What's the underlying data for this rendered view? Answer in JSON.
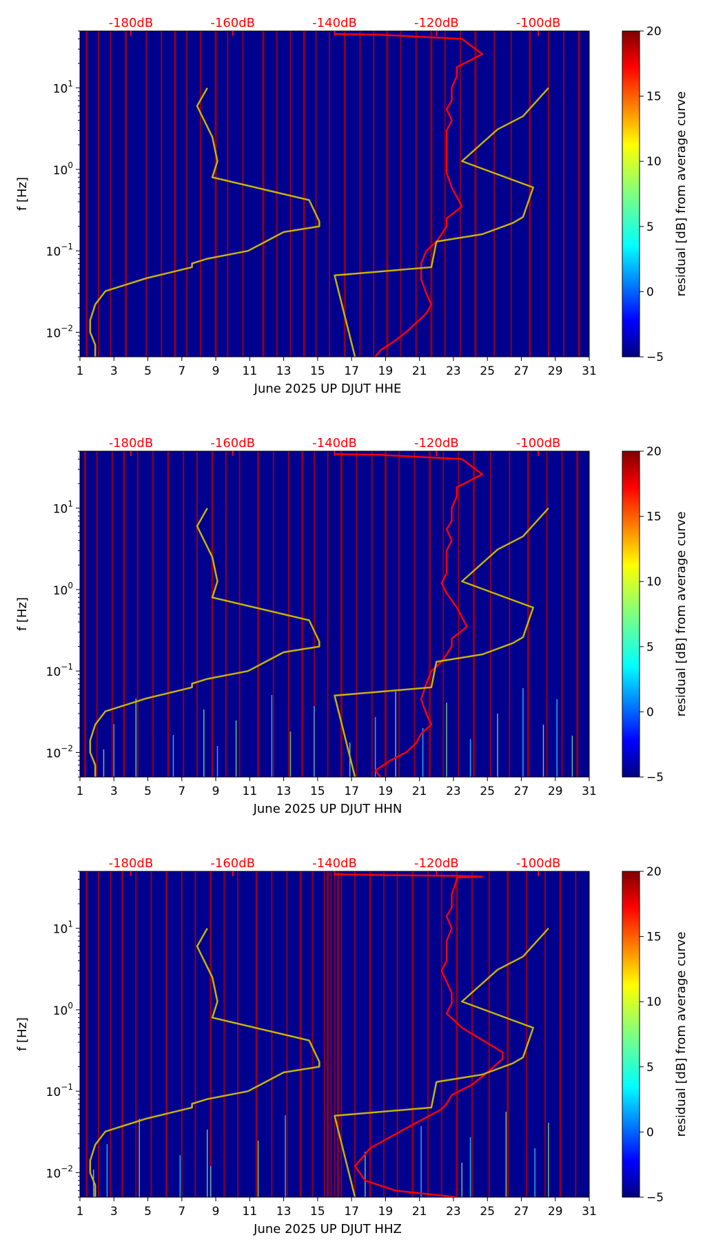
{
  "chart_data": [
    {
      "type": "heatmap",
      "xlabel": "June 2025 UP DJUT  HHE",
      "ylabel": "f [Hz]",
      "colorbar_label": "residual [dB] from average curve",
      "xlim": [
        1,
        31
      ],
      "ylim": [
        0.005,
        50
      ],
      "yscale": "log",
      "x_ticks": [
        "1",
        "3",
        "5",
        "7",
        "9",
        "11",
        "13",
        "15",
        "17",
        "19",
        "21",
        "23",
        "25",
        "27",
        "29",
        "31"
      ],
      "y_ticks": [
        {
          "value": 0.01,
          "base": "10",
          "exp": "−2"
        },
        {
          "value": 0.1,
          "base": "10",
          "exp": "−1"
        },
        {
          "value": 1,
          "base": "10",
          "exp": "0"
        },
        {
          "value": 10,
          "base": "10",
          "exp": "1"
        }
      ],
      "colorbar": {
        "min": -5,
        "max": 20,
        "ticks": [
          "−5",
          "0",
          "5",
          "10",
          "15",
          "20"
        ]
      },
      "db_axis": {
        "color": "#ff0000",
        "ticks": [
          {
            "x": 4.0,
            "label": "-180dB"
          },
          {
            "x": 10.0,
            "label": "-160dB"
          },
          {
            "x": 16.0,
            "label": "-140dB"
          },
          {
            "x": 22.0,
            "label": "-120dB"
          },
          {
            "x": 28.0,
            "label": "-100dB"
          }
        ]
      },
      "background_color": "#00008f",
      "red_stripe_days": [
        1.4,
        2.1,
        2.8,
        3.7,
        4.9,
        5.8,
        6.6,
        7.3,
        8.1,
        9.0,
        9.7,
        10.6,
        11.8,
        12.6,
        13.4,
        14.2,
        14.9,
        15.7,
        16.6,
        17.5,
        18.3,
        19.1,
        19.9,
        20.8,
        21.7,
        22.5,
        23.4,
        24.3,
        25.4,
        26.4,
        27.5,
        28.6,
        29.5,
        30.4
      ],
      "series": [
        {
          "name": "",
          "color": "#ff0000",
          "dB": [
            -132,
            -131,
            -128,
            -126,
            -124,
            -122,
            -121,
            -122,
            -123,
            -123,
            -122,
            -120,
            -119,
            -118,
            -118,
            -115,
            -117,
            -118,
            -118,
            -118,
            -118,
            -118,
            -117,
            -118,
            -117,
            -117,
            -116,
            -116,
            -111,
            -115,
            -131,
            -140
          ],
          "f": [
            0.005,
            0.006,
            0.008,
            0.01,
            0.013,
            0.017,
            0.022,
            0.03,
            0.045,
            0.07,
            0.1,
            0.13,
            0.16,
            0.2,
            0.25,
            0.35,
            0.6,
            0.9,
            1.2,
            1.6,
            2.2,
            3,
            4,
            5.5,
            7,
            10,
            14,
            18,
            26,
            40,
            45,
            46
          ]
        },
        {
          "name": "",
          "color": "#c8b400",
          "dB": [
            -187,
            -187,
            -188,
            -188,
            -187,
            -185,
            -177,
            -168,
            -168,
            -165,
            -157,
            -150,
            -143,
            -143,
            -145,
            -164,
            -163,
            -164,
            -167,
            -165,
            -165
          ],
          "f": [
            0.005,
            0.007,
            0.01,
            0.014,
            0.022,
            0.032,
            0.046,
            0.063,
            0.07,
            0.08,
            0.1,
            0.17,
            0.2,
            0.23,
            0.42,
            0.8,
            1.26,
            2.5,
            6,
            10,
            10
          ]
        },
        {
          "name": "",
          "color": "#c8b400",
          "dB": [
            -136,
            -140,
            -121,
            -120,
            -111,
            -105,
            -103,
            -101,
            -115,
            -108,
            -103,
            -98
          ],
          "f": [
            0.005,
            0.05,
            0.063,
            0.13,
            0.16,
            0.22,
            0.26,
            0.6,
            1.26,
            3.1,
            4.5,
            10
          ]
        }
      ],
      "hot_streaks": []
    },
    {
      "type": "heatmap",
      "xlabel": "June 2025 UP DJUT  HHN",
      "ylabel": "f [Hz]",
      "colorbar_label": "residual [dB] from average curve",
      "xlim": [
        1,
        31
      ],
      "ylim": [
        0.005,
        50
      ],
      "yscale": "log",
      "x_ticks": [
        "1",
        "3",
        "5",
        "7",
        "9",
        "11",
        "13",
        "15",
        "17",
        "19",
        "21",
        "23",
        "25",
        "27",
        "29",
        "31"
      ],
      "y_ticks": [
        {
          "value": 0.01,
          "base": "10",
          "exp": "−2"
        },
        {
          "value": 0.1,
          "base": "10",
          "exp": "−1"
        },
        {
          "value": 1,
          "base": "10",
          "exp": "0"
        },
        {
          "value": 10,
          "base": "10",
          "exp": "1"
        }
      ],
      "colorbar": {
        "min": -5,
        "max": 20,
        "ticks": [
          "−5",
          "0",
          "5",
          "10",
          "15",
          "20"
        ]
      },
      "db_axis": {
        "color": "#ff0000",
        "ticks": [
          {
            "x": 4.0,
            "label": "-180dB"
          },
          {
            "x": 10.0,
            "label": "-160dB"
          },
          {
            "x": 16.0,
            "label": "-140dB"
          },
          {
            "x": 22.0,
            "label": "-120dB"
          },
          {
            "x": 28.0,
            "label": "-100dB"
          }
        ]
      },
      "background_color": "#00008f",
      "red_stripe_days": [
        1.3,
        2.0,
        2.9,
        3.6,
        4.4,
        5.3,
        6.2,
        7.1,
        7.9,
        8.8,
        9.6,
        10.4,
        11.5,
        12.4,
        13.3,
        14.1,
        14.8,
        15.6,
        16.4,
        17.3,
        18.2,
        19.0,
        19.8,
        20.7,
        21.6,
        22.4,
        23.3,
        24.2,
        25.2,
        26.3,
        27.4,
        28.5,
        29.4,
        30.3
      ],
      "series": [
        {
          "name": "",
          "color": "#ff0000",
          "dB": [
            -131,
            -132,
            -129,
            -126,
            -124,
            -123,
            -121,
            -122,
            -123,
            -122,
            -121,
            -119,
            -118,
            -117,
            -117,
            -114,
            -116,
            -118,
            -119,
            -118,
            -118,
            -118,
            -117,
            -118,
            -117,
            -117,
            -116,
            -116,
            -111,
            -115,
            -131,
            -140
          ],
          "f": [
            0.005,
            0.006,
            0.008,
            0.01,
            0.013,
            0.017,
            0.022,
            0.03,
            0.045,
            0.07,
            0.1,
            0.13,
            0.16,
            0.2,
            0.25,
            0.35,
            0.6,
            0.9,
            1.2,
            1.6,
            2.2,
            3,
            4,
            5.5,
            7,
            10,
            14,
            18,
            26,
            40,
            45,
            46
          ]
        },
        {
          "name": "",
          "color": "#c8b400",
          "dB": [
            -187,
            -187,
            -188,
            -188,
            -187,
            -185,
            -177,
            -168,
            -168,
            -165,
            -157,
            -150,
            -143,
            -143,
            -145,
            -164,
            -163,
            -164,
            -167,
            -165,
            -165
          ],
          "f": [
            0.005,
            0.007,
            0.01,
            0.014,
            0.022,
            0.032,
            0.046,
            0.063,
            0.07,
            0.08,
            0.1,
            0.17,
            0.2,
            0.23,
            0.42,
            0.8,
            1.26,
            2.5,
            6,
            10,
            10
          ]
        },
        {
          "name": "",
          "color": "#c8b400",
          "dB": [
            -136,
            -140,
            -121,
            -120,
            -111,
            -105,
            -103,
            -101,
            -115,
            -108,
            -103,
            -98
          ],
          "f": [
            0.005,
            0.05,
            0.063,
            0.13,
            0.16,
            0.22,
            0.26,
            0.6,
            1.26,
            3.1,
            4.5,
            10
          ]
        }
      ],
      "hot_streaks": [
        2.4,
        3.0,
        4.3,
        6.5,
        8.3,
        9.1,
        10.2,
        12.3,
        13.4,
        14.8,
        16.9,
        18.4,
        19.6,
        21.2,
        22.6,
        24.0,
        25.6,
        27.1,
        28.3,
        29.1,
        30.0
      ]
    },
    {
      "type": "heatmap",
      "xlabel": "June 2025 UP DJUT  HHZ",
      "ylabel": "f [Hz]",
      "colorbar_label": "residual [dB] from average curve",
      "xlim": [
        1,
        31
      ],
      "ylim": [
        0.005,
        50
      ],
      "yscale": "log",
      "x_ticks": [
        "1",
        "3",
        "5",
        "7",
        "9",
        "11",
        "13",
        "15",
        "17",
        "19",
        "21",
        "23",
        "25",
        "27",
        "29",
        "31"
      ],
      "y_ticks": [
        {
          "value": 0.01,
          "base": "10",
          "exp": "−2"
        },
        {
          "value": 0.1,
          "base": "10",
          "exp": "−1"
        },
        {
          "value": 1,
          "base": "10",
          "exp": "0"
        },
        {
          "value": 10,
          "base": "10",
          "exp": "1"
        }
      ],
      "colorbar": {
        "min": -5,
        "max": 20,
        "ticks": [
          "−5",
          "0",
          "5",
          "10",
          "15",
          "20"
        ]
      },
      "db_axis": {
        "color": "#ff0000",
        "ticks": [
          {
            "x": 4.0,
            "label": "-180dB"
          },
          {
            "x": 10.0,
            "label": "-160dB"
          },
          {
            "x": 16.0,
            "label": "-140dB"
          },
          {
            "x": 22.0,
            "label": "-120dB"
          },
          {
            "x": 28.0,
            "label": "-100dB"
          }
        ]
      },
      "background_color": "#00008f",
      "red_stripe_days": [
        1.4,
        2.1,
        2.8,
        3.5,
        4.3,
        5.2,
        6.1,
        7.0,
        7.8,
        8.7,
        9.5,
        10.3,
        11.4,
        12.3,
        13.2,
        14.0,
        14.7,
        15.4,
        15.6,
        15.8,
        16.0,
        16.2,
        16.4,
        17.2,
        18.1,
        18.9,
        19.7,
        20.6,
        21.5,
        22.3,
        23.2,
        24.1,
        25.1,
        26.2,
        27.3,
        28.4,
        29.3,
        30.2
      ],
      "series": [
        {
          "name": "",
          "color": "#ff0000",
          "dB": [
            -116,
            -128,
            -134,
            -136,
            -133,
            -126,
            -119,
            -118,
            -117,
            -113,
            -110,
            -107,
            -107,
            -115,
            -118,
            -117,
            -117,
            -118,
            -119,
            -118,
            -118,
            -118,
            -117,
            -118,
            -117,
            -117,
            -116,
            -116,
            -111,
            -115,
            -131,
            -140
          ],
          "f": [
            0.005,
            0.006,
            0.008,
            0.012,
            0.02,
            0.035,
            0.06,
            0.07,
            0.09,
            0.12,
            0.17,
            0.25,
            0.3,
            0.6,
            0.9,
            1.2,
            1.6,
            2.2,
            3,
            4,
            5.5,
            7,
            10,
            14,
            18,
            26,
            40,
            42,
            43,
            44,
            45,
            46
          ]
        },
        {
          "name": "",
          "color": "#c8b400",
          "dB": [
            -187,
            -187,
            -188,
            -188,
            -187,
            -185,
            -177,
            -168,
            -168,
            -165,
            -157,
            -150,
            -143,
            -143,
            -145,
            -164,
            -163,
            -164,
            -167,
            -165,
            -165
          ],
          "f": [
            0.005,
            0.007,
            0.01,
            0.014,
            0.022,
            0.032,
            0.046,
            0.063,
            0.07,
            0.08,
            0.1,
            0.17,
            0.2,
            0.23,
            0.42,
            0.8,
            1.26,
            2.5,
            6,
            10,
            10
          ]
        },
        {
          "name": "",
          "color": "#c8b400",
          "dB": [
            -136,
            -140,
            -121,
            -120,
            -111,
            -105,
            -103,
            -101,
            -115,
            -108,
            -103,
            -98
          ],
          "f": [
            0.005,
            0.05,
            0.063,
            0.13,
            0.16,
            0.22,
            0.26,
            0.6,
            1.26,
            3.1,
            4.5,
            10
          ]
        }
      ],
      "hot_streaks": [
        1.8,
        2.6,
        4.5,
        6.9,
        8.5,
        8.7,
        11.5,
        13.1,
        17.8,
        21.1,
        23.5,
        24.0,
        26.1,
        27.8,
        28.6
      ]
    }
  ]
}
